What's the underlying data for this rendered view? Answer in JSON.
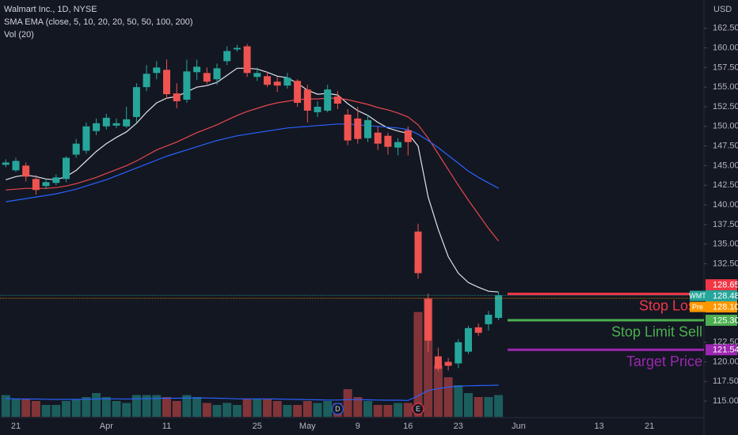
{
  "chart_data": {
    "type": "candlestick",
    "title": "Walmart Inc., 1D, NYSE",
    "indicators": [
      "SMA EMA (close, 5, 10, 20, 20, 50, 50, 100, 200)",
      "Vol (20)"
    ],
    "currency": "USD",
    "up_color": "#26a69a",
    "down_color": "#ef5350",
    "ylim": [
      113.0,
      166.1
    ],
    "yticks": [
      {
        "value": 162.5,
        "label": "162.50"
      },
      {
        "value": 160,
        "label": "160.00"
      },
      {
        "value": 157.5,
        "label": "157.50"
      },
      {
        "value": 155,
        "label": "155.00"
      },
      {
        "value": 152.5,
        "label": "152.50"
      },
      {
        "value": 150,
        "label": "150.00"
      },
      {
        "value": 147.5,
        "label": "147.50"
      },
      {
        "value": 145,
        "label": "145.00"
      },
      {
        "value": 142.5,
        "label": "142.50"
      },
      {
        "value": 140,
        "label": "140.00"
      },
      {
        "value": 137.5,
        "label": "137.50"
      },
      {
        "value": 135,
        "label": "135.00"
      },
      {
        "value": 132.5,
        "label": "132.50"
      },
      {
        "value": 122.5,
        "label": "122.50"
      },
      {
        "value": 120,
        "label": "120.00"
      },
      {
        "value": 117.5,
        "label": "117.50"
      },
      {
        "value": 115,
        "label": "115.00"
      }
    ],
    "categories": [
      null,
      "21",
      null,
      null,
      null,
      null,
      null,
      null,
      null,
      null,
      "Apr",
      null,
      null,
      null,
      null,
      null,
      "11",
      null,
      null,
      null,
      null,
      null,
      null,
      null,
      null,
      "25",
      null,
      null,
      null,
      null,
      "May",
      null,
      null,
      null,
      null,
      "9",
      null,
      null,
      null,
      null,
      "16",
      null,
      null,
      null,
      null,
      "23",
      null,
      null,
      null,
      null,
      null,
      "Jun",
      null,
      null,
      null,
      null,
      null,
      null,
      null,
      "13",
      null,
      null,
      null,
      null,
      "21",
      null,
      null,
      null,
      null,
      null
    ],
    "open": [
      145.1,
      144.4,
      145.0,
      143.3,
      142.4,
      142.8,
      143.3,
      146.4,
      146.9,
      149.4,
      150.0,
      150.1,
      150.0,
      151.2,
      155.0,
      156.8,
      157.2,
      154.2,
      153.4,
      156.9,
      156.8,
      156.0,
      158.3,
      159.8,
      160.2,
      156.3,
      156.4,
      155.7,
      155.2,
      155.8,
      154.7,
      151.8,
      152.0,
      153.8,
      151.5,
      151.0,
      148.5,
      149.2,
      148.8,
      147.3,
      149.5,
      136.6,
      128.0,
      120.7,
      120.0,
      119.8,
      121.3,
      124.4,
      124.8,
      125.6,
      null,
      null,
      null,
      null,
      null,
      null,
      null,
      null,
      null,
      null,
      null,
      null,
      null,
      null,
      null,
      null,
      null,
      null,
      null,
      null
    ],
    "high": [
      145.8,
      146.0,
      145.4,
      143.8,
      143.3,
      143.9,
      146.2,
      148.4,
      150.5,
      151.0,
      151.6,
      151.0,
      152.5,
      155.5,
      157.8,
      158.3,
      158.5,
      155.5,
      158.5,
      158.5,
      157.5,
      158.0,
      160.2,
      160.4,
      160.5,
      157.5,
      157.0,
      156.3,
      156.8,
      156.0,
      155.3,
      153.2,
      155.3,
      154.5,
      152.2,
      152.5,
      151.5,
      150.0,
      149.2,
      148.5,
      150.0,
      137.6,
      128.7,
      121.8,
      120.5,
      122.9,
      124.6,
      124.9,
      126.5,
      128.9,
      null,
      null,
      null,
      null,
      null,
      null,
      null,
      null,
      null,
      null,
      null,
      null,
      null,
      null,
      null,
      null,
      null,
      null,
      null,
      null
    ],
    "low": [
      144.8,
      144.2,
      143.0,
      141.3,
      142.0,
      142.5,
      142.9,
      146.0,
      146.5,
      148.9,
      149.6,
      149.8,
      149.8,
      150.5,
      154.5,
      156.0,
      153.5,
      152.3,
      153.0,
      155.9,
      155.4,
      155.3,
      157.8,
      159.5,
      156.3,
      155.8,
      155.0,
      154.4,
      154.8,
      152.5,
      150.5,
      151.2,
      151.8,
      152.2,
      147.6,
      147.8,
      148.0,
      147.0,
      146.4,
      146.3,
      146.3,
      130.6,
      121.3,
      118.8,
      118.9,
      119.2,
      121.0,
      123.3,
      124.0,
      125.3,
      null,
      null,
      null,
      null,
      null,
      null,
      null,
      null,
      null,
      null,
      null,
      null,
      null,
      null,
      null,
      null,
      null,
      null,
      null,
      null
    ],
    "close": [
      145.4,
      145.6,
      143.6,
      141.9,
      142.9,
      143.5,
      146.0,
      147.8,
      150.0,
      150.4,
      151.1,
      150.4,
      150.9,
      155.0,
      156.7,
      157.5,
      154.1,
      153.2,
      157.0,
      157.6,
      155.7,
      157.4,
      159.6,
      160.0,
      156.8,
      156.8,
      155.3,
      155.2,
      156.2,
      153.0,
      152.0,
      152.5,
      154.7,
      152.9,
      148.2,
      148.4,
      150.8,
      147.8,
      147.4,
      148.0,
      148.0,
      131.3,
      122.7,
      119.1,
      119.5,
      122.5,
      124.3,
      123.7,
      126.0,
      128.48,
      null,
      null,
      null,
      null,
      null,
      null,
      null,
      null,
      null,
      null,
      null,
      null,
      null,
      null,
      null,
      null,
      null,
      null,
      null,
      null
    ],
    "lines": [
      {
        "color": "#e0e3eb",
        "values": [
          143.2,
          143.6,
          143.8,
          143.6,
          143.3,
          143.2,
          143.6,
          144.4,
          145.6,
          146.8,
          147.8,
          148.6,
          149.3,
          150.4,
          151.8,
          153.0,
          153.6,
          153.8,
          154.4,
          155.0,
          155.2,
          155.6,
          156.5,
          157.4,
          157.4,
          157.3,
          156.9,
          156.4,
          156.2,
          155.5,
          154.6,
          154.1,
          154.2,
          154.0,
          152.9,
          152.0,
          151.4,
          150.5,
          149.8,
          149.4,
          149.1,
          147.5,
          141.0,
          136.9,
          133.4,
          131.3,
          130.1,
          129.5,
          129.0,
          128.9,
          null,
          null,
          null,
          null,
          null,
          null,
          null,
          null,
          null,
          null,
          null,
          null,
          null,
          null,
          null,
          null,
          null,
          null,
          null,
          null
        ]
      },
      {
        "color": "#e5484d",
        "values": [
          141.9,
          142.0,
          142.1,
          142.1,
          142.1,
          142.2,
          142.4,
          142.7,
          143.1,
          143.5,
          144.0,
          144.5,
          145.0,
          145.6,
          146.3,
          147.0,
          147.5,
          148.0,
          148.6,
          149.2,
          149.7,
          150.2,
          150.8,
          151.4,
          151.9,
          152.3,
          152.7,
          153.0,
          153.2,
          153.4,
          153.5,
          153.5,
          153.6,
          153.6,
          153.4,
          153.1,
          152.8,
          152.4,
          152.1,
          151.7,
          151.2,
          150.2,
          148.5,
          146.5,
          144.5,
          142.5,
          140.6,
          138.8,
          137.0,
          135.4,
          null,
          null,
          null,
          null,
          null,
          null,
          null,
          null,
          null,
          null,
          null,
          null,
          null,
          null,
          null,
          null,
          null,
          null,
          null,
          null
        ]
      },
      {
        "color": "#2962ff",
        "values": [
          140.4,
          140.6,
          140.8,
          141.0,
          141.2,
          141.4,
          141.7,
          142.0,
          142.4,
          142.8,
          143.2,
          143.7,
          144.2,
          144.7,
          145.2,
          145.7,
          146.2,
          146.6,
          147.0,
          147.4,
          147.8,
          148.2,
          148.5,
          148.8,
          149.0,
          149.2,
          149.4,
          149.6,
          149.8,
          149.9,
          150.0,
          150.1,
          150.2,
          150.3,
          150.3,
          150.2,
          150.1,
          150.0,
          149.9,
          149.8,
          149.6,
          149.0,
          148.2,
          147.3,
          146.3,
          145.3,
          144.3,
          143.5,
          142.8,
          142.1,
          null,
          null,
          null,
          null,
          null,
          null,
          null,
          null,
          null,
          null,
          null,
          null,
          null,
          null,
          null,
          null,
          null,
          null,
          null,
          null
        ]
      }
    ],
    "volume": [
      11,
      9,
      9,
      8,
      6,
      6,
      8,
      9,
      10,
      12,
      10,
      8,
      7,
      11,
      11,
      11,
      10,
      8,
      11,
      10,
      7,
      6,
      7,
      6,
      9,
      9,
      9,
      8,
      6,
      6,
      8,
      7,
      8,
      7,
      14,
      10,
      8,
      6,
      6,
      7,
      7,
      53,
      60,
      26,
      20,
      16,
      12,
      10,
      10,
      11,
      null,
      null,
      null,
      null,
      null,
      null,
      null,
      null,
      null,
      null,
      null,
      null,
      null,
      null,
      null,
      null,
      null,
      null,
      null,
      null
    ],
    "volume_ma": {
      "color": "#2962ff",
      "values": [
        9.2,
        9.1,
        9.0,
        9.0,
        8.9,
        8.8,
        8.8,
        8.8,
        8.9,
        9.0,
        9.1,
        9.1,
        9.0,
        9.1,
        9.2,
        9.3,
        9.4,
        9.4,
        9.5,
        9.6,
        9.5,
        9.4,
        9.3,
        9.1,
        9.1,
        9.1,
        9.1,
        9.0,
        8.9,
        8.8,
        8.7,
        8.6,
        8.5,
        8.5,
        8.7,
        8.7,
        8.6,
        8.5,
        8.4,
        8.4,
        8.3,
        10.6,
        13.3,
        14.3,
        15.0,
        15.5,
        15.7,
        15.8,
        15.9,
        16.0,
        null,
        null,
        null,
        null,
        null,
        null,
        null,
        null,
        null,
        null,
        null,
        null,
        null,
        null,
        null,
        null,
        null,
        null,
        null,
        null
      ]
    },
    "price_lines": [
      {
        "value": 128.65,
        "text": "Stop Loss",
        "color": "#f23645"
      },
      {
        "value": 125.3,
        "label": "125.30",
        "text": "Stop Limit Sell",
        "color": "#4caf50"
      },
      {
        "value": 121.54,
        "text": "Target Price",
        "color": "#9c27b0"
      }
    ],
    "price_markers": [
      {
        "name": "WMT",
        "value": 128.48,
        "color": "#26a69a"
      },
      {
        "name": "Pre",
        "value": 128.1,
        "label": "128.10",
        "color": "#ff9800"
      }
    ],
    "events": [
      {
        "label": "D",
        "index": 33,
        "color": "#2962ff"
      },
      {
        "label": "E",
        "index": 41,
        "color": "#f23645"
      }
    ]
  }
}
